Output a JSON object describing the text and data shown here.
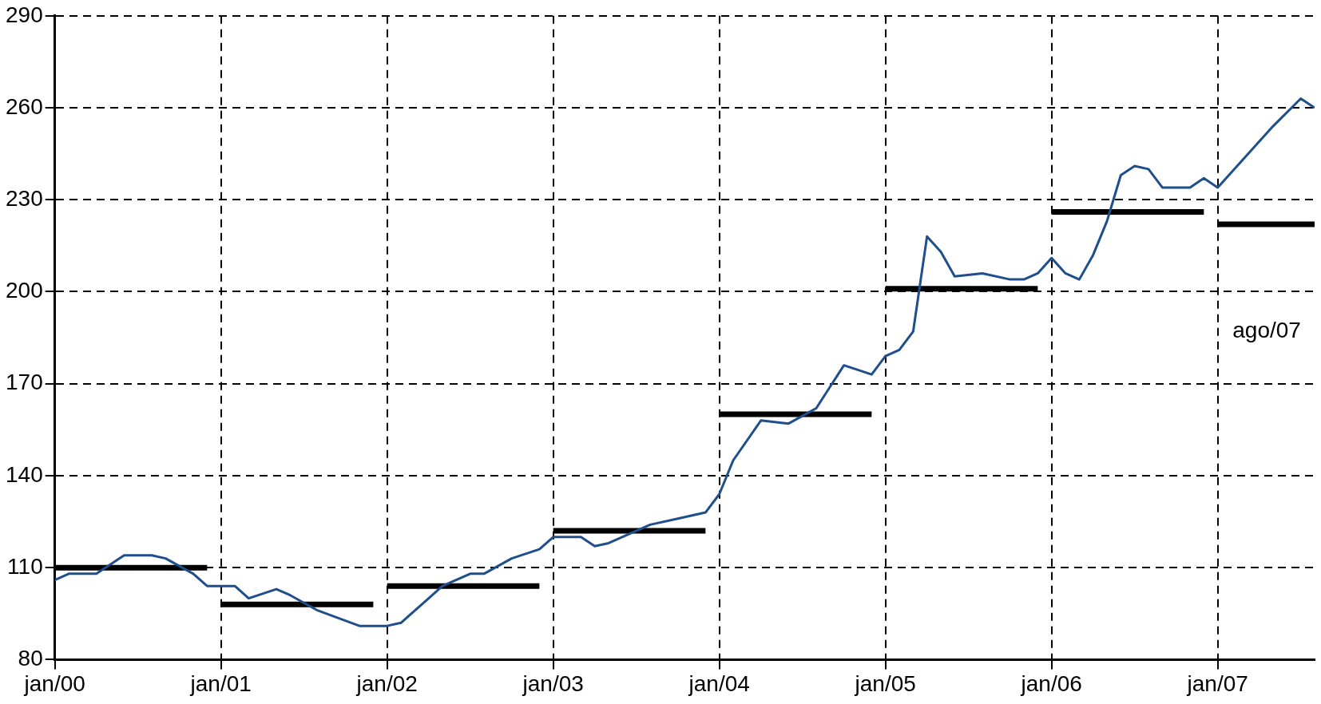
{
  "chart_data": {
    "type": "line",
    "xlim": [
      "2000-01",
      "2007-08"
    ],
    "ylim": [
      80,
      290
    ],
    "xticks": [
      {
        "value": "2000-01",
        "label": "jan/00"
      },
      {
        "value": "2001-01",
        "label": "jan/01"
      },
      {
        "value": "2002-01",
        "label": "jan/02"
      },
      {
        "value": "2003-01",
        "label": "jan/03"
      },
      {
        "value": "2004-01",
        "label": "jan/04"
      },
      {
        "value": "2005-01",
        "label": "jan/05"
      },
      {
        "value": "2006-01",
        "label": "jan/06"
      },
      {
        "value": "2007-01",
        "label": "jan/07"
      }
    ],
    "yticks": [
      80,
      110,
      140,
      170,
      200,
      230,
      260,
      290
    ],
    "grid": true,
    "legend": false,
    "marker": "none",
    "line_style": "solid",
    "annotations": [
      "ago/07"
    ],
    "series": [
      {
        "type": "line",
        "color": "#1f4e8c",
        "x": [
          "2000-01",
          "2000-02",
          "2000-04",
          "2000-06",
          "2000-08",
          "2000-09",
          "2000-11",
          "2000-12",
          "2001-02",
          "2001-03",
          "2001-05",
          "2001-06",
          "2001-08",
          "2001-11",
          "2002-01",
          "2002-02",
          "2002-04",
          "2002-05",
          "2002-07",
          "2002-08",
          "2002-10",
          "2002-12",
          "2003-01",
          "2003-03",
          "2003-04",
          "2003-05",
          "2003-08",
          "2003-10",
          "2003-12",
          "2004-01",
          "2004-02",
          "2004-04",
          "2004-06",
          "2004-08",
          "2004-09",
          "2004-10",
          "2004-12",
          "2005-01",
          "2005-02",
          "2005-03",
          "2005-04",
          "2005-05",
          "2005-06",
          "2005-08",
          "2005-10",
          "2005-11",
          "2005-12",
          "2006-01",
          "2006-02",
          "2006-03",
          "2006-04",
          "2006-05",
          "2006-06",
          "2006-07",
          "2006-08",
          "2006-09",
          "2006-11",
          "2006-12",
          "2007-01",
          "2007-03",
          "2007-05",
          "2007-07",
          "2007-08"
        ],
        "values": [
          106,
          108,
          108,
          114,
          114,
          113,
          108,
          104,
          104,
          100,
          103,
          101,
          96,
          91,
          91,
          92,
          100,
          104,
          108,
          108,
          113,
          116,
          120,
          120,
          117,
          118,
          124,
          126,
          128,
          134,
          145,
          158,
          157,
          162,
          169,
          176,
          173,
          179,
          181,
          187,
          218,
          213,
          205,
          206,
          204,
          204,
          206,
          211,
          206,
          204,
          212,
          223,
          238,
          241,
          240,
          234,
          234,
          237,
          234,
          244,
          254,
          263,
          260
        ]
      },
      {
        "type": "line",
        "color": "#000000",
        "x": [
          "2000-01",
          "2000-12",
          "2000-12-15",
          "2001-01",
          "2001-12",
          "2001-12-15",
          "2002-01",
          "2002-12",
          "2002-12-15",
          "2003-01",
          "2003-12",
          "2003-12-15",
          "2004-01",
          "2004-12",
          "2004-12-15",
          "2005-01",
          "2005-12",
          "2005-12-15",
          "2006-01",
          "2006-12",
          "2006-12-15",
          "2007-01",
          "2007-08"
        ],
        "values": [
          110,
          110,
          null,
          98,
          98,
          null,
          104,
          104,
          null,
          122,
          122,
          null,
          160,
          160,
          null,
          201,
          201,
          null,
          226,
          226,
          null,
          222,
          222
        ]
      }
    ]
  }
}
